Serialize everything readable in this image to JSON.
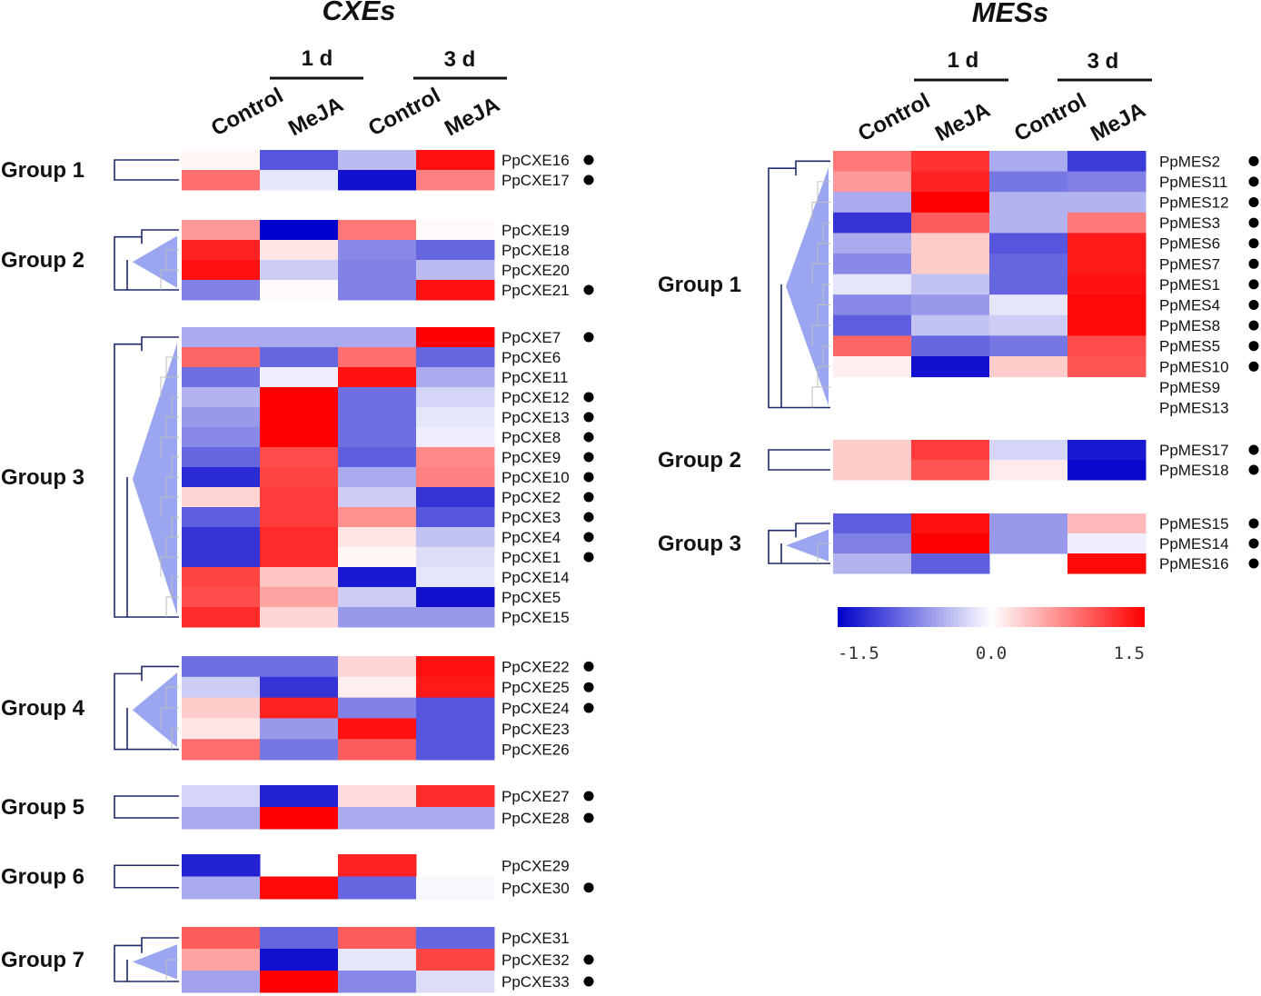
{
  "colorscale": {
    "low": "#0000cc",
    "mid": "#ffffff",
    "high": "#ff0000",
    "min": -1.5,
    "max": 1.5,
    "tick_labels": [
      "-1.5",
      "0.0",
      "1.5"
    ]
  },
  "chart_data": [
    {
      "type": "heatmap",
      "title": "CXEs",
      "timepoints": [
        "1 d",
        "3 d"
      ],
      "columns": [
        "Control",
        "MeJA",
        "Control",
        "MeJA"
      ],
      "groups": [
        {
          "label": "Group 1",
          "rows": [
            {
              "gene": "PpCXE16",
              "dot": true,
              "values": [
                0.05,
                -1.0,
                -0.4,
                1.4
              ]
            },
            {
              "gene": "PpCXE17",
              "dot": true,
              "values": [
                0.85,
                -0.15,
                -1.4,
                0.75
              ]
            }
          ]
        },
        {
          "label": "Group 2",
          "rows": [
            {
              "gene": "PpCXE19",
              "dot": false,
              "values": [
                0.6,
                -1.5,
                0.8,
                0.03
              ]
            },
            {
              "gene": "PpCXE18",
              "dot": false,
              "values": [
                1.3,
                0.15,
                -0.7,
                -0.9
              ]
            },
            {
              "gene": "PpCXE20",
              "dot": false,
              "values": [
                1.4,
                -0.3,
                -0.75,
                -0.4
              ]
            },
            {
              "gene": "PpCXE21",
              "dot": true,
              "values": [
                -0.75,
                0.03,
                -0.75,
                1.4
              ]
            }
          ]
        },
        {
          "label": "Group 3",
          "rows": [
            {
              "gene": "PpCXE7",
              "dot": true,
              "values": [
                -0.5,
                -0.5,
                -0.5,
                1.5
              ]
            },
            {
              "gene": "PpCXE6",
              "dot": false,
              "values": [
                0.9,
                -0.9,
                0.85,
                -0.9
              ]
            },
            {
              "gene": "PpCXE11",
              "dot": false,
              "values": [
                -0.85,
                -0.1,
                1.4,
                -0.5
              ]
            },
            {
              "gene": "PpCXE12",
              "dot": true,
              "values": [
                -0.45,
                1.5,
                -0.85,
                -0.25
              ]
            },
            {
              "gene": "PpCXE13",
              "dot": true,
              "values": [
                -0.6,
                1.5,
                -0.85,
                -0.15
              ]
            },
            {
              "gene": "PpCXE8",
              "dot": true,
              "values": [
                -0.7,
                1.5,
                -0.85,
                -0.1
              ]
            },
            {
              "gene": "PpCXE9",
              "dot": true,
              "values": [
                -0.9,
                1.05,
                -0.95,
                0.7
              ]
            },
            {
              "gene": "PpCXE10",
              "dot": true,
              "values": [
                -1.25,
                1.1,
                -0.5,
                0.75
              ]
            },
            {
              "gene": "PpCXE2",
              "dot": true,
              "values": [
                0.25,
                1.15,
                -0.3,
                -1.2
              ]
            },
            {
              "gene": "PpCXE3",
              "dot": true,
              "values": [
                -0.95,
                1.15,
                0.65,
                -1.0
              ]
            },
            {
              "gene": "PpCXE4",
              "dot": true,
              "values": [
                -1.2,
                1.25,
                0.15,
                -0.35
              ]
            },
            {
              "gene": "PpCXE1",
              "dot": true,
              "values": [
                -1.2,
                1.25,
                0.05,
                -0.2
              ]
            },
            {
              "gene": "PpCXE14",
              "dot": false,
              "values": [
                1.1,
                0.35,
                -1.35,
                -0.15
              ]
            },
            {
              "gene": "PpCXE5",
              "dot": false,
              "values": [
                1.05,
                0.55,
                -0.3,
                -1.4
              ]
            },
            {
              "gene": "PpCXE15",
              "dot": false,
              "values": [
                1.25,
                0.25,
                -0.6,
                -0.6
              ]
            }
          ]
        },
        {
          "label": "Group 4",
          "rows": [
            {
              "gene": "PpCXE22",
              "dot": true,
              "values": [
                -0.85,
                -0.85,
                0.25,
                1.4
              ]
            },
            {
              "gene": "PpCXE25",
              "dot": true,
              "values": [
                -0.3,
                -1.2,
                0.1,
                1.35
              ]
            },
            {
              "gene": "PpCXE24",
              "dot": true,
              "values": [
                0.3,
                1.3,
                -0.75,
                -1.0
              ]
            },
            {
              "gene": "PpCXE23",
              "dot": false,
              "values": [
                0.15,
                -0.6,
                1.4,
                -1.0
              ]
            },
            {
              "gene": "PpCXE26",
              "dot": false,
              "values": [
                0.85,
                -0.8,
                0.95,
                -1.0
              ]
            }
          ]
        },
        {
          "label": "Group 5",
          "rows": [
            {
              "gene": "PpCXE27",
              "dot": true,
              "values": [
                -0.25,
                -1.3,
                0.2,
                1.25
              ]
            },
            {
              "gene": "PpCXE28",
              "dot": true,
              "values": [
                -0.5,
                1.5,
                -0.5,
                -0.5
              ]
            }
          ]
        },
        {
          "label": "Group 6",
          "rows": [
            {
              "gene": "PpCXE29",
              "dot": false,
              "values": [
                -1.3,
                null,
                1.3,
                null
              ]
            },
            {
              "gene": "PpCXE30",
              "dot": true,
              "values": [
                -0.5,
                1.45,
                -0.9,
                -0.05
              ]
            }
          ]
        },
        {
          "label": "Group 7",
          "rows": [
            {
              "gene": "PpCXE31",
              "dot": false,
              "values": [
                0.95,
                -0.9,
                0.95,
                -0.9
              ]
            },
            {
              "gene": "PpCXE32",
              "dot": true,
              "values": [
                0.55,
                -1.4,
                -0.15,
                1.1
              ]
            },
            {
              "gene": "PpCXE33",
              "dot": true,
              "values": [
                -0.55,
                1.5,
                -0.7,
                -0.2
              ]
            }
          ]
        }
      ]
    },
    {
      "type": "heatmap",
      "title": "MESs",
      "timepoints": [
        "1 d",
        "3 d"
      ],
      "columns": [
        "Control",
        "MeJA",
        "Control",
        "MeJA"
      ],
      "groups": [
        {
          "label": "Group 1",
          "rows": [
            {
              "gene": "PpMES2",
              "dot": true,
              "values": [
                0.8,
                1.2,
                -0.5,
                -1.15
              ]
            },
            {
              "gene": "PpMES11",
              "dot": true,
              "values": [
                0.6,
                1.3,
                -0.8,
                -0.75
              ]
            },
            {
              "gene": "PpMES12",
              "dot": true,
              "values": [
                -0.5,
                1.5,
                -0.45,
                -0.45
              ]
            },
            {
              "gene": "PpMES3",
              "dot": true,
              "values": [
                -1.2,
                0.95,
                -0.45,
                0.8
              ]
            },
            {
              "gene": "PpMES6",
              "dot": true,
              "values": [
                -0.5,
                0.3,
                -1.0,
                1.35
              ]
            },
            {
              "gene": "PpMES7",
              "dot": true,
              "values": [
                -0.7,
                0.3,
                -0.9,
                1.35
              ]
            },
            {
              "gene": "PpMES1",
              "dot": true,
              "values": [
                -0.15,
                -0.35,
                -0.9,
                1.4
              ]
            },
            {
              "gene": "PpMES4",
              "dot": true,
              "values": [
                -0.7,
                -0.6,
                -0.15,
                1.45
              ]
            },
            {
              "gene": "PpMES8",
              "dot": true,
              "values": [
                -0.95,
                -0.35,
                -0.3,
                1.45
              ]
            },
            {
              "gene": "PpMES5",
              "dot": true,
              "values": [
                0.9,
                -0.9,
                -0.8,
                1.05
              ]
            },
            {
              "gene": "PpMES10",
              "dot": true,
              "values": [
                0.1,
                -1.4,
                0.3,
                1.0
              ]
            },
            {
              "gene": "PpMES9",
              "dot": false,
              "values": [
                null,
                null,
                null,
                null
              ]
            },
            {
              "gene": "PpMES13",
              "dot": false,
              "values": [
                null,
                null,
                null,
                null
              ]
            }
          ]
        },
        {
          "label": "Group 2",
          "rows": [
            {
              "gene": "PpMES17",
              "dot": true,
              "values": [
                0.3,
                1.15,
                -0.25,
                -1.35
              ]
            },
            {
              "gene": "PpMES18",
              "dot": true,
              "values": [
                0.3,
                1.0,
                0.12,
                -1.45
              ]
            }
          ]
        },
        {
          "label": "Group 3",
          "rows": [
            {
              "gene": "PpMES15",
              "dot": true,
              "values": [
                -0.95,
                1.4,
                -0.6,
                0.4
              ]
            },
            {
              "gene": "PpMES14",
              "dot": true,
              "values": [
                -0.75,
                1.5,
                -0.6,
                -0.1
              ]
            },
            {
              "gene": "PpMES16",
              "dot": true,
              "values": [
                -0.45,
                -0.95,
                null,
                1.45
              ]
            }
          ]
        }
      ]
    }
  ]
}
